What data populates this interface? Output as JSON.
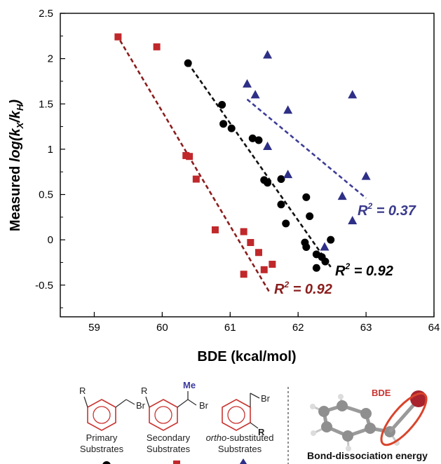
{
  "chart_data": {
    "type": "scatter",
    "title": "",
    "xlabel": "BDE (kcal/mol)",
    "ylabel_parts": {
      "prefix": "Measured ",
      "log": "log",
      "open": "(k",
      "sub_x": "X",
      "slash": "/k",
      "sub_h": "H",
      "close": ")"
    },
    "xlim": [
      58.5,
      64
    ],
    "ylim": [
      -0.85,
      2.5
    ],
    "xticks": [
      "59",
      "60",
      "61",
      "62",
      "63",
      "64"
    ],
    "xtick_values": [
      59,
      60,
      61,
      62,
      63,
      64
    ],
    "yticks": [
      "2.5",
      "2",
      "1.5",
      "1",
      "0.5",
      "0",
      "-0.5"
    ],
    "ytick_values": [
      2.5,
      2,
      1.5,
      1,
      0.5,
      0,
      -0.5
    ],
    "grid": false,
    "series": [
      {
        "key": "primary",
        "marker": "circle",
        "color": "#000000",
        "points": [
          [
            60.38,
            1.95
          ],
          [
            60.88,
            1.49
          ],
          [
            60.9,
            1.28
          ],
          [
            61.02,
            1.23
          ],
          [
            61.33,
            1.12
          ],
          [
            61.42,
            1.1
          ],
          [
            61.5,
            0.66
          ],
          [
            61.55,
            0.63
          ],
          [
            61.75,
            0.67
          ],
          [
            61.75,
            0.39
          ],
          [
            61.82,
            0.18
          ],
          [
            62.12,
            0.47
          ],
          [
            62.17,
            0.26
          ],
          [
            62.1,
            -0.03
          ],
          [
            62.12,
            -0.08
          ],
          [
            62.27,
            -0.16
          ],
          [
            62.35,
            -0.19
          ],
          [
            62.27,
            -0.31
          ],
          [
            62.4,
            -0.24
          ],
          [
            62.48,
            0.0
          ]
        ],
        "fit": {
          "x": [
            60.38,
            62.48
          ],
          "y": [
            1.95,
            -0.3
          ],
          "color": "#111111",
          "label": {
            "base": "R",
            "sup": "2",
            "rest": " = 0.92"
          },
          "label_color": "#000000"
        }
      },
      {
        "key": "secondary",
        "marker": "square",
        "color": "#c0282b",
        "points": [
          [
            59.35,
            2.24
          ],
          [
            59.92,
            2.13
          ],
          [
            60.35,
            0.93
          ],
          [
            60.4,
            0.92
          ],
          [
            60.5,
            0.67
          ],
          [
            60.78,
            0.11
          ],
          [
            61.2,
            0.09
          ],
          [
            61.3,
            -0.03
          ],
          [
            61.42,
            -0.14
          ],
          [
            61.2,
            -0.38
          ],
          [
            61.5,
            -0.33
          ],
          [
            61.62,
            -0.27
          ]
        ],
        "fit": {
          "x": [
            59.38,
            61.58
          ],
          "y": [
            2.2,
            -0.58
          ],
          "color": "#8b1e1e",
          "label": {
            "base": "R",
            "sup": "2",
            "rest": " = 0.92"
          },
          "label_color": "#8b1e1e"
        }
      },
      {
        "key": "ortho",
        "marker": "triangle",
        "color": "#2e2f86",
        "points": [
          [
            61.25,
            1.72
          ],
          [
            61.37,
            1.6
          ],
          [
            61.55,
            2.04
          ],
          [
            61.55,
            1.03
          ],
          [
            61.85,
            1.43
          ],
          [
            61.85,
            0.72
          ],
          [
            62.39,
            -0.08
          ],
          [
            62.65,
            0.48
          ],
          [
            62.8,
            1.6
          ],
          [
            62.8,
            0.21
          ],
          [
            63.0,
            0.7
          ]
        ],
        "fit": {
          "x": [
            61.25,
            63.0
          ],
          "y": [
            1.55,
            0.46
          ],
          "color": "#3d3d99",
          "label": {
            "base": "R",
            "sup": "2",
            "rest": " = 0.37"
          },
          "label_color": "#3a3a8c"
        }
      }
    ]
  },
  "scheme": {
    "primary_label": [
      "Primary",
      "Substrates"
    ],
    "secondary_label": [
      "Secondary",
      "Substrates"
    ],
    "ortho_label_italic": "ortho",
    "ortho_label_rest": "-substituted",
    "ortho_label_line2": "Substrates",
    "chem_r": "R",
    "chem_br": "Br",
    "chem_me": "Me",
    "bde_badge": "BDE",
    "bond_caption": "Bond-dissociation energy",
    "colors": {
      "ring_red": "#c9332f",
      "me_blue": "#3a3a9c",
      "bond_red": "#d9442b",
      "br_atom": "#a8232e"
    }
  }
}
